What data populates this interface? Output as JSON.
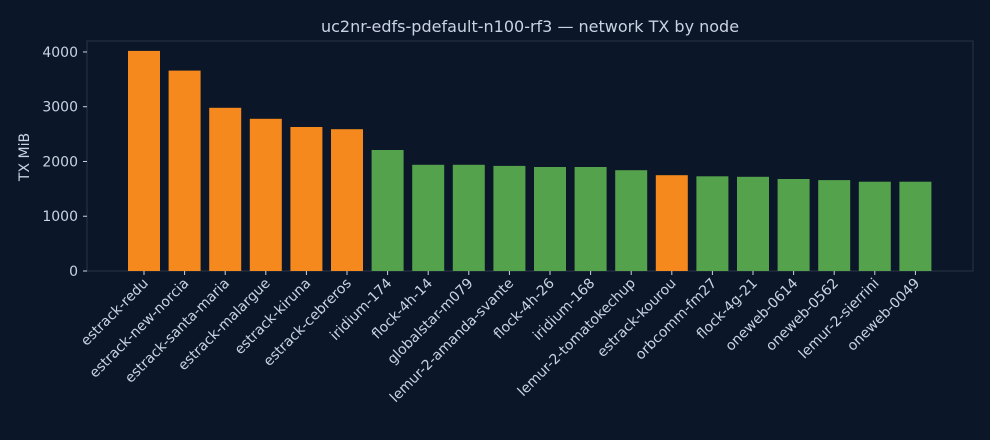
{
  "chart_data": {
    "type": "bar",
    "title": "uc2nr-edfs-pdefault-n100-rf3 — network TX by node",
    "xlabel": "",
    "ylabel": "TX MiB",
    "ylim": [
      0,
      4200
    ],
    "yticks": [
      0,
      1000,
      2000,
      3000,
      4000
    ],
    "grid": false,
    "legend": "none",
    "categories": [
      "estrack-redu",
      "estrack-new-norcia",
      "estrack-santa-maria",
      "estrack-malargue",
      "estrack-kiruna",
      "estrack-cebreros",
      "iridium-174",
      "flock-4h-14",
      "globalstar-m079",
      "lemur-2-amanda-svante",
      "flock-4h-26",
      "iridium-168",
      "lemur-2-tomatokechup",
      "estrack-kourou",
      "orbcomm-fm27",
      "flock-4g-21",
      "oneweb-0614",
      "oneweb-0562",
      "lemur-2-sierrini",
      "oneweb-0049"
    ],
    "values": [
      4020,
      3660,
      2980,
      2780,
      2630,
      2590,
      2210,
      1940,
      1940,
      1920,
      1900,
      1900,
      1840,
      1750,
      1730,
      1720,
      1680,
      1660,
      1630,
      1630
    ],
    "groups": [
      "ground",
      "ground",
      "ground",
      "ground",
      "ground",
      "ground",
      "satellite",
      "satellite",
      "satellite",
      "satellite",
      "satellite",
      "satellite",
      "satellite",
      "ground",
      "satellite",
      "satellite",
      "satellite",
      "satellite",
      "satellite",
      "satellite"
    ],
    "colors": {
      "ground": "#f5891d",
      "satellite": "#55a24c"
    }
  },
  "colors": {
    "background": "#0b1628",
    "text": "#c9d3e2",
    "frame": "#2a3648"
  }
}
